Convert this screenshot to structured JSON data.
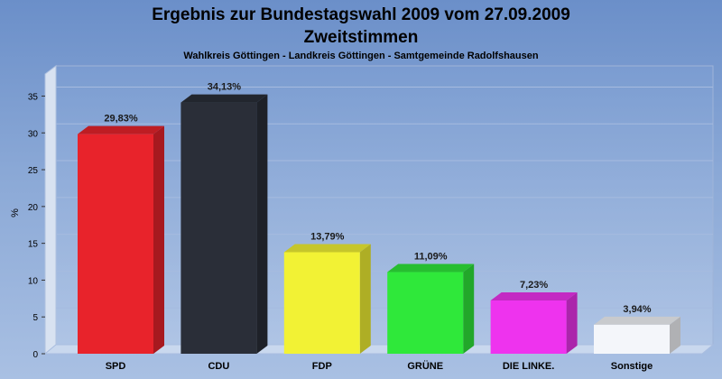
{
  "chart_data": {
    "type": "bar",
    "title": "Ergebnis zur Bundestagswahl 2009 vom 27.09.2009",
    "title_line2": "Zweitstimmen",
    "subtitle": "Wahlkreis Göttingen - Landkreis Göttingen - Samtgemeinde Radolfshausen",
    "ylabel": "%",
    "xlabel": "",
    "ylim": [
      0,
      38
    ],
    "yticks": [
      0,
      5,
      10,
      15,
      20,
      25,
      30,
      35
    ],
    "grid": true,
    "categories": [
      "SPD",
      "CDU",
      "FDP",
      "GRÜNE",
      "DIE LINKE.",
      "Sonstige"
    ],
    "values": [
      29.83,
      34.13,
      13.79,
      11.09,
      7.23,
      3.94
    ],
    "value_labels": [
      "29,83%",
      "34,13%",
      "13,79%",
      "11,09%",
      "7,23%",
      "3,94%"
    ],
    "colors": [
      "#e8232b",
      "#2a2e38",
      "#f2f234",
      "#2fe83a",
      "#ee33ee",
      "#f4f6fa"
    ]
  }
}
